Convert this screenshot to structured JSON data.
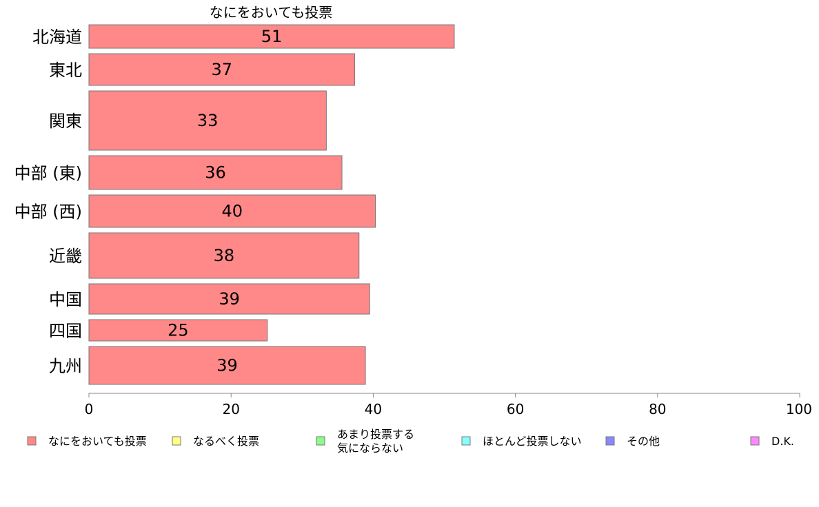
{
  "chart_data": {
    "type": "bar",
    "orientation": "horizontal",
    "title": "なにをおいても投票",
    "xlabel": "",
    "ylabel": "",
    "xlim": [
      0,
      100
    ],
    "xticks": [
      0,
      20,
      40,
      60,
      80,
      100
    ],
    "categories": [
      "北海道",
      "東北",
      "関東",
      "中部 (東)",
      "中部 (西)",
      "近畿",
      "中国",
      "四国",
      "九州"
    ],
    "series": [
      {
        "name": "なにをおいても投票",
        "color": "#ff8888",
        "values": [
          51.4,
          37.4,
          33.4,
          35.6,
          40.3,
          38.0,
          39.5,
          25.1,
          38.9
        ],
        "labels": [
          "51",
          "37",
          "33",
          "36",
          "40",
          "38",
          "39",
          "25",
          "39"
        ]
      }
    ],
    "legend": {
      "placement": "bottom",
      "items": [
        {
          "label": "なにをおいても投票",
          "color": "#ff8888"
        },
        {
          "label": "なるべく投票",
          "color": "#ffff88"
        },
        {
          "label": "あまり投票する\n気にならない",
          "color": "#88ff88"
        },
        {
          "label": "ほとんど投票しない",
          "color": "#88ffff"
        },
        {
          "label": "その他",
          "color": "#8888ff"
        },
        {
          "label": "D.K.",
          "color": "#ff88ff"
        }
      ]
    },
    "grid": false
  }
}
